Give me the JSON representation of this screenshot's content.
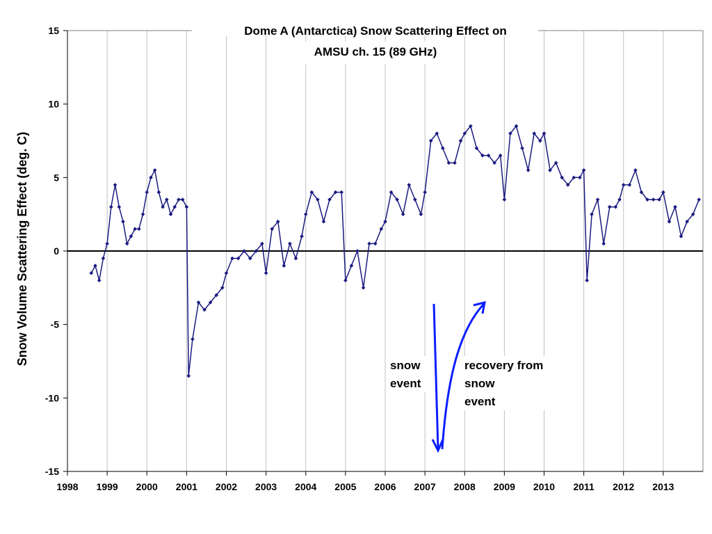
{
  "chart_data": {
    "type": "line",
    "title": "Dome A (Antarctica) Snow Scattering Effect on",
    "subtitle": "AMSU ch. 15 (89 GHz)",
    "xlabel": "",
    "ylabel": "Snow Volume Scattering Effect (deg. C)",
    "xlim": [
      1998,
      2014
    ],
    "ylim": [
      -15,
      15
    ],
    "x_ticks": [
      "1998",
      "1999",
      "2000",
      "2001",
      "2002",
      "2003",
      "2004",
      "2005",
      "2006",
      "2007",
      "2008",
      "2009",
      "2010",
      "2011",
      "2012",
      "2013"
    ],
    "y_ticks": [
      "-15",
      "-10",
      "-5",
      "0",
      "5",
      "10",
      "15"
    ],
    "grid": "vertical",
    "legend": "none",
    "series_color": "#1a1a80",
    "series": [
      {
        "x": [
          1998.6,
          1998.7,
          1998.8,
          1998.9,
          1999.0,
          1999.1,
          1999.2,
          1999.3,
          1999.4,
          1999.5,
          1999.6,
          1999.7,
          1999.8,
          1999.9,
          2000.0,
          2000.1,
          2000.2,
          2000.3,
          2000.4,
          2000.5,
          2000.6,
          2000.7,
          2000.8,
          2000.9,
          2001.0,
          2001.05,
          2001.15,
          2001.3,
          2001.45,
          2001.6,
          2001.75,
          2001.9,
          2002.0,
          2002.15,
          2002.3,
          2002.45,
          2002.6,
          2002.75,
          2002.9,
          2003.0,
          2003.15,
          2003.3,
          2003.45,
          2003.6,
          2003.75,
          2003.9,
          2004.0,
          2004.15,
          2004.3,
          2004.45,
          2004.6,
          2004.75,
          2004.9,
          2005.0,
          2005.15,
          2005.3,
          2005.45,
          2005.6,
          2005.75,
          2005.9,
          2006.0,
          2006.15,
          2006.3,
          2006.45,
          2006.6,
          2006.75,
          2006.9,
          2007.0,
          2007.15,
          2007.3,
          2007.45,
          2007.6,
          2007.75,
          2007.9,
          2008.0,
          2008.15,
          2008.3,
          2008.45,
          2008.6,
          2008.75,
          2008.9,
          2009.0,
          2009.15,
          2009.3,
          2009.45,
          2009.6,
          2009.75,
          2009.9,
          2010.0,
          2010.15,
          2010.3,
          2010.45,
          2010.6,
          2010.75,
          2010.9,
          2011.0,
          2011.08,
          2011.2,
          2011.35,
          2011.5,
          2011.65,
          2011.8,
          2011.9,
          2012.0,
          2012.15,
          2012.3,
          2012.45,
          2012.6,
          2012.75,
          2012.9,
          2013.0,
          2013.15,
          2013.3,
          2013.45,
          2013.6,
          2013.75,
          2013.9
        ],
        "y": [
          -1.5,
          -1.0,
          -2.0,
          -0.5,
          0.5,
          3.0,
          4.5,
          3.0,
          2.0,
          0.5,
          1.0,
          1.5,
          1.5,
          2.5,
          4.0,
          5.0,
          5.5,
          4.0,
          3.0,
          3.5,
          2.5,
          3.0,
          3.5,
          3.5,
          3.0,
          -8.5,
          -6.0,
          -3.5,
          -4.0,
          -3.5,
          -3.0,
          -2.5,
          -1.5,
          -0.5,
          -0.5,
          0.0,
          -0.5,
          0.0,
          0.5,
          -1.5,
          1.5,
          2.0,
          -1.0,
          0.5,
          -0.5,
          1.0,
          2.5,
          4.0,
          3.5,
          2.0,
          3.5,
          4.0,
          4.0,
          -2.0,
          -1.0,
          0.0,
          -2.5,
          0.5,
          0.5,
          1.5,
          2.0,
          4.0,
          3.5,
          2.5,
          4.5,
          3.5,
          2.5,
          4.0,
          7.5,
          8.0,
          7.0,
          6.0,
          6.0,
          7.5,
          8.0,
          8.5,
          7.0,
          6.5,
          6.5,
          6.0,
          6.5,
          3.5,
          8.0,
          8.5,
          7.0,
          5.5,
          8.0,
          7.5,
          8.0,
          5.5,
          6.0,
          5.0,
          4.5,
          5.0,
          5.0,
          5.5,
          -2.0,
          2.5,
          3.5,
          0.5,
          3.0,
          3.0,
          3.5,
          4.5,
          4.5,
          5.5,
          4.0,
          3.5,
          3.5,
          3.5,
          4.0,
          2.0,
          3.0,
          1.0,
          2.0,
          2.5,
          3.5
        ]
      }
    ],
    "annotations": [
      {
        "lines": [
          "snow",
          "event"
        ]
      },
      {
        "lines": [
          "recovery from",
          "snow",
          "event"
        ]
      }
    ],
    "annotation_arrow_color": "#0a1eff"
  }
}
